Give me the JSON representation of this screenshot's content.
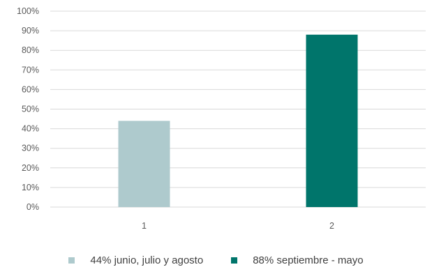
{
  "chart_data": {
    "type": "bar",
    "categories": [
      "1",
      "2"
    ],
    "series": [
      {
        "name": "44% junio, julio y agosto",
        "values": [
          44,
          null
        ],
        "color": "#aecacd"
      },
      {
        "name": "88% septiembre - mayo",
        "values": [
          null,
          88
        ],
        "color": "#00756b"
      }
    ],
    "ylim": [
      0,
      100
    ],
    "yticks": [
      "0%",
      "10%",
      "20%",
      "30%",
      "40%",
      "50%",
      "60%",
      "70%",
      "80%",
      "90%",
      "100%"
    ],
    "grid": true,
    "legend_position": "bottom"
  }
}
